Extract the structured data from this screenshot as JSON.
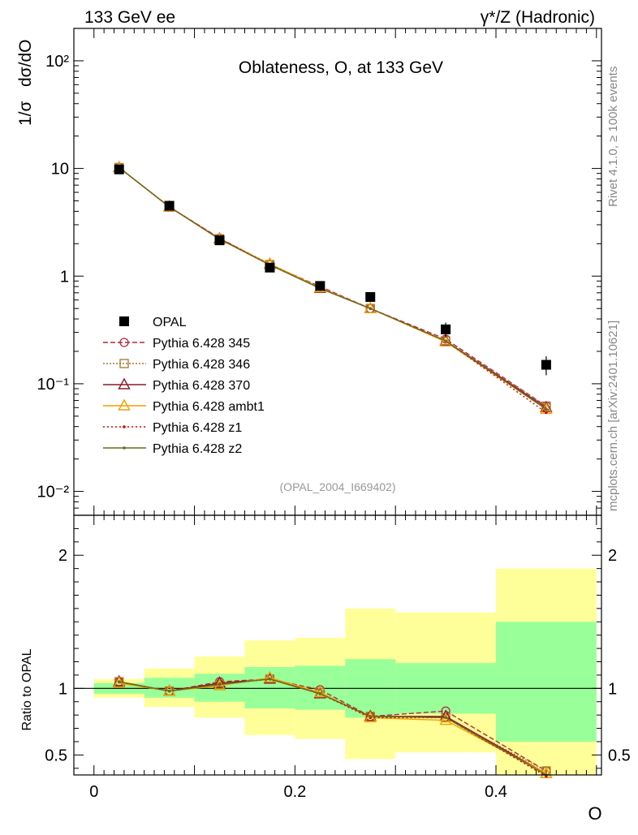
{
  "header": {
    "left": "133 GeV ee",
    "right": "γ*/Z (Hadronic)"
  },
  "side": {
    "rivet": "Rivet 4.1.0, ≥ 100k events",
    "mcplots": "mcplots.cern.ch [arXiv:2401.10621]"
  },
  "colors": {
    "data": "#000000",
    "p345": "#b22a3a",
    "p346": "#a5772e",
    "p370": "#8b1a2a",
    "ambt1": "#f0a000",
    "z1": "#e00000",
    "z2": "#6b6a1e",
    "band_inner": "#99ff99",
    "band_outer": "#ffff99"
  },
  "chart_data": [
    {
      "type": "line",
      "panel": "main",
      "title": "Oblateness, O, at 133 GeV",
      "ylabel": "1/σ  dσ/dO",
      "ylabel_parts": [
        "1/σ",
        "dσ/dO"
      ],
      "xlabel": "O",
      "yscale": "log",
      "ylim": [
        0.006,
        200
      ],
      "xlim": [
        -0.02,
        0.505
      ],
      "yticks": [
        "10⁻²",
        "10⁻¹",
        "1",
        "10",
        "10²"
      ],
      "annotation": "(OPAL_2004_I669402)",
      "x": [
        0.025,
        0.075,
        0.125,
        0.175,
        0.225,
        0.275,
        0.35,
        0.45
      ],
      "bins": [
        [
          0,
          0.05
        ],
        [
          0.05,
          0.1
        ],
        [
          0.1,
          0.15
        ],
        [
          0.15,
          0.2
        ],
        [
          0.2,
          0.25
        ],
        [
          0.25,
          0.3
        ],
        [
          0.3,
          0.4
        ],
        [
          0.4,
          0.5
        ]
      ],
      "series": [
        {
          "key": "data",
          "name": "OPAL",
          "marker": "square",
          "values": [
            9.8,
            4.5,
            2.15,
            1.2,
            0.81,
            0.64,
            0.32,
            0.15
          ],
          "err": [
            0.2,
            0.12,
            0.06,
            0.05,
            0.04,
            0.06,
            0.05,
            0.03
          ]
        },
        {
          "key": "p345",
          "name": "Pythia 6.428 345",
          "marker": "circle",
          "dash": "6,3",
          "values": [
            10.2,
            4.4,
            2.25,
            1.28,
            0.8,
            0.5,
            0.26,
            0.062
          ]
        },
        {
          "key": "p346",
          "name": "Pythia 6.428 346",
          "marker": "square-open",
          "dash": "2,2",
          "values": [
            10.2,
            4.38,
            2.22,
            1.28,
            0.77,
            0.5,
            0.25,
            0.062
          ]
        },
        {
          "key": "p370",
          "name": "Pythia 6.428 370",
          "marker": "triangle",
          "dash": "",
          "values": [
            10.2,
            4.4,
            2.22,
            1.29,
            0.77,
            0.5,
            0.25,
            0.06
          ]
        },
        {
          "key": "ambt1",
          "name": "Pythia 6.428 ambt1",
          "marker": "triangle-open",
          "dash": "",
          "values": [
            10.2,
            4.42,
            2.2,
            1.3,
            0.78,
            0.5,
            0.245,
            0.058
          ]
        },
        {
          "key": "z1",
          "name": "Pythia 6.428 z1",
          "marker": "dot",
          "dash": "2,3",
          "values": [
            10.2,
            4.4,
            2.22,
            1.28,
            0.77,
            0.5,
            0.25,
            0.054
          ]
        },
        {
          "key": "z2",
          "name": "Pythia 6.428 z2",
          "marker": "dot",
          "dash": "",
          "values": [
            10.2,
            4.4,
            2.2,
            1.27,
            0.77,
            0.5,
            0.25,
            0.058
          ]
        }
      ]
    },
    {
      "type": "line",
      "panel": "ratio",
      "ylabel": "Ratio to OPAL",
      "xlabel": "O",
      "ylim": [
        0.35,
        2.3
      ],
      "yticks": [
        "0.5",
        "1",
        "2"
      ],
      "xticks": [
        "0",
        "0.2",
        "0.4"
      ],
      "bins": [
        [
          0,
          0.05
        ],
        [
          0.05,
          0.1
        ],
        [
          0.1,
          0.15
        ],
        [
          0.15,
          0.2
        ],
        [
          0.2,
          0.25
        ],
        [
          0.25,
          0.3
        ],
        [
          0.3,
          0.4
        ],
        [
          0.4,
          0.5
        ]
      ],
      "band_inner": [
        [
          0.96,
          1.04
        ],
        [
          0.93,
          1.08
        ],
        [
          0.9,
          1.11
        ],
        [
          0.85,
          1.16
        ],
        [
          0.84,
          1.17
        ],
        [
          0.78,
          1.22
        ],
        [
          0.81,
          1.19
        ],
        [
          0.6,
          1.5
        ]
      ],
      "band_outer": [
        [
          0.93,
          1.07
        ],
        [
          0.86,
          1.15
        ],
        [
          0.78,
          1.24
        ],
        [
          0.65,
          1.36
        ],
        [
          0.62,
          1.38
        ],
        [
          0.47,
          1.6
        ],
        [
          0.52,
          1.57
        ],
        [
          0.35,
          1.9
        ]
      ],
      "x": [
        0.025,
        0.075,
        0.125,
        0.175,
        0.225,
        0.275,
        0.35,
        0.45
      ],
      "series": [
        {
          "key": "p345",
          "name": "Pythia 6.428 345",
          "values": [
            1.05,
            0.98,
            1.05,
            1.07,
            0.99,
            0.79,
            0.83,
            0.38
          ]
        },
        {
          "key": "p346",
          "name": "Pythia 6.428 346",
          "values": [
            1.05,
            0.98,
            1.03,
            1.07,
            0.97,
            0.79,
            0.78,
            0.38
          ]
        },
        {
          "key": "p370",
          "name": "Pythia 6.428 370",
          "values": [
            1.05,
            0.98,
            1.04,
            1.07,
            0.96,
            0.79,
            0.79,
            0.36
          ]
        },
        {
          "key": "ambt1",
          "name": "Pythia 6.428 ambt1",
          "values": [
            1.04,
            0.98,
            1.02,
            1.08,
            0.97,
            0.78,
            0.76,
            0.36
          ]
        },
        {
          "key": "z1",
          "name": "Pythia 6.428 z1",
          "values": [
            1.05,
            0.98,
            1.03,
            1.07,
            0.96,
            0.78,
            0.78,
            0.34
          ]
        },
        {
          "key": "z2",
          "name": "Pythia 6.428 z2",
          "values": [
            1.05,
            0.98,
            1.03,
            1.07,
            0.96,
            0.79,
            0.78,
            0.35
          ]
        }
      ]
    }
  ]
}
